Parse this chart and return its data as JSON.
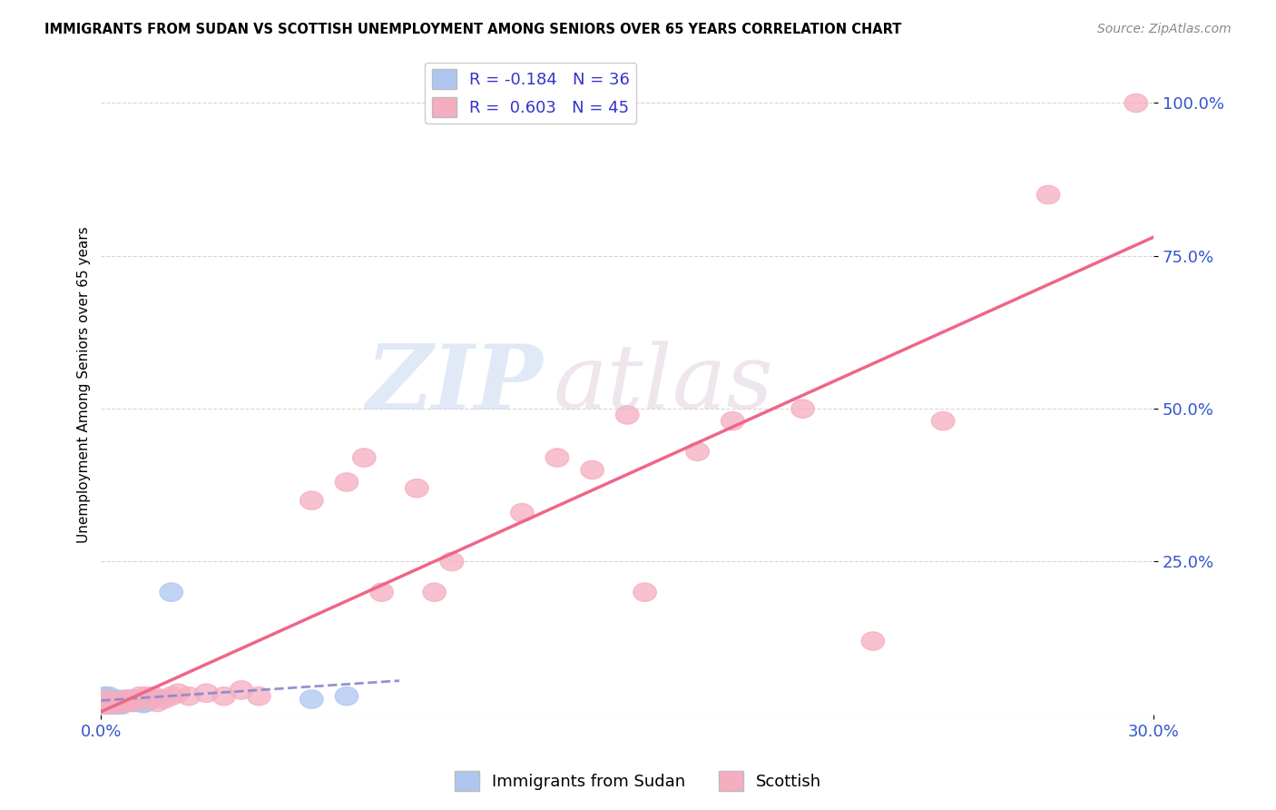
{
  "title": "IMMIGRANTS FROM SUDAN VS SCOTTISH UNEMPLOYMENT AMONG SENIORS OVER 65 YEARS CORRELATION CHART",
  "source": "Source: ZipAtlas.com",
  "ylabel": "Unemployment Among Seniors over 65 years",
  "legend_label1": "Immigrants from Sudan",
  "legend_label2": "Scottish",
  "r1": -0.184,
  "n1": 36,
  "r2": 0.603,
  "n2": 45,
  "color1": "#aec6f0",
  "color2": "#f5adc0",
  "line_color1": "#8888cc",
  "line_color2": "#ee6688",
  "xlim": [
    0.0,
    0.3
  ],
  "ylim": [
    0.0,
    1.08
  ],
  "ytick_labels": [
    "25.0%",
    "50.0%",
    "75.0%",
    "100.0%"
  ],
  "ytick_values": [
    0.25,
    0.5,
    0.75,
    1.0
  ],
  "sudan_x": [
    0.0005,
    0.001,
    0.001,
    0.0012,
    0.0015,
    0.0015,
    0.0018,
    0.002,
    0.002,
    0.0022,
    0.0025,
    0.0025,
    0.0028,
    0.003,
    0.003,
    0.0033,
    0.0035,
    0.0038,
    0.004,
    0.0042,
    0.0045,
    0.0048,
    0.005,
    0.0055,
    0.006,
    0.0065,
    0.007,
    0.008,
    0.009,
    0.01,
    0.012,
    0.013,
    0.015,
    0.02,
    0.06,
    0.07
  ],
  "sudan_y": [
    0.02,
    0.02,
    0.03,
    0.025,
    0.015,
    0.025,
    0.02,
    0.015,
    0.025,
    0.03,
    0.015,
    0.025,
    0.02,
    0.01,
    0.02,
    0.025,
    0.015,
    0.02,
    0.018,
    0.022,
    0.02,
    0.025,
    0.02,
    0.015,
    0.02,
    0.018,
    0.022,
    0.025,
    0.02,
    0.02,
    0.018,
    0.02,
    0.025,
    0.2,
    0.025,
    0.03
  ],
  "scottish_x": [
    0.001,
    0.002,
    0.002,
    0.003,
    0.004,
    0.005,
    0.006,
    0.007,
    0.007,
    0.008,
    0.009,
    0.01,
    0.011,
    0.012,
    0.013,
    0.014,
    0.015,
    0.016,
    0.018,
    0.02,
    0.022,
    0.025,
    0.03,
    0.035,
    0.04,
    0.045,
    0.06,
    0.07,
    0.075,
    0.08,
    0.09,
    0.095,
    0.1,
    0.12,
    0.13,
    0.14,
    0.15,
    0.155,
    0.17,
    0.18,
    0.2,
    0.22,
    0.24,
    0.27,
    0.295
  ],
  "scottish_y": [
    0.02,
    0.015,
    0.025,
    0.02,
    0.018,
    0.022,
    0.018,
    0.02,
    0.025,
    0.022,
    0.02,
    0.025,
    0.03,
    0.025,
    0.03,
    0.028,
    0.03,
    0.02,
    0.025,
    0.03,
    0.035,
    0.03,
    0.035,
    0.03,
    0.04,
    0.03,
    0.35,
    0.38,
    0.42,
    0.2,
    0.37,
    0.2,
    0.25,
    0.33,
    0.42,
    0.4,
    0.49,
    0.2,
    0.43,
    0.48,
    0.5,
    0.12,
    0.48,
    0.85,
    1.0
  ]
}
